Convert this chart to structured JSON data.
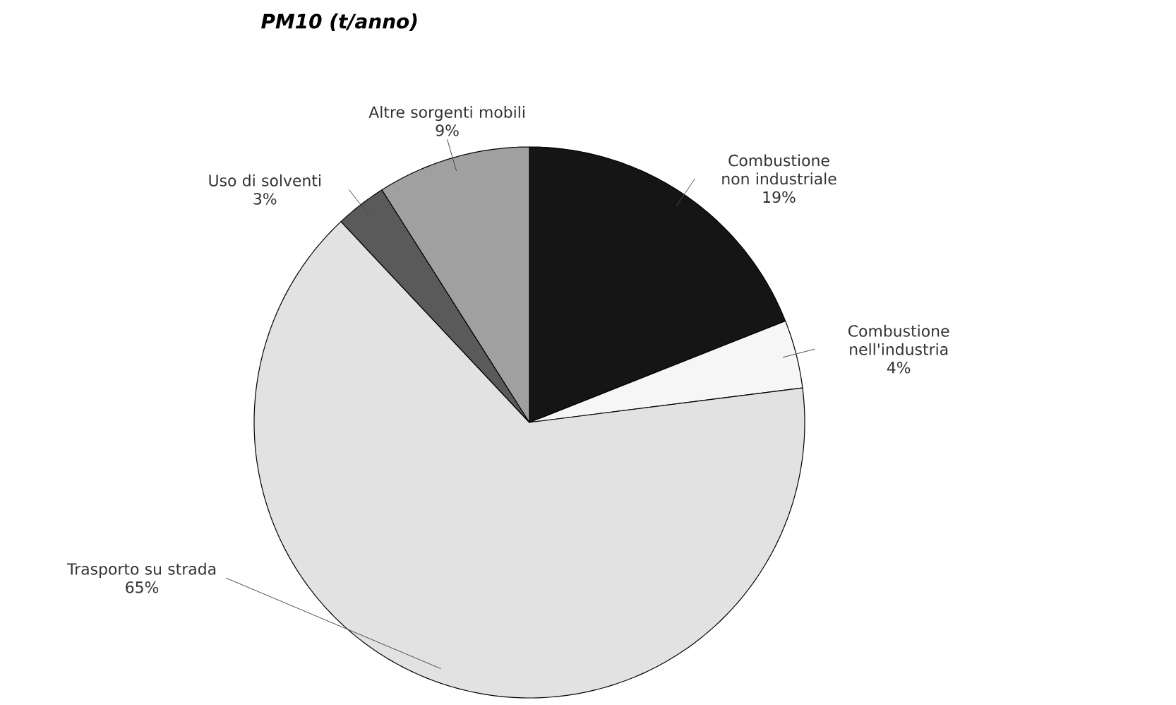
{
  "chart_data": {
    "type": "pie",
    "title": "PM10 (t/anno)",
    "categories": [
      "Combustione non industriale",
      "Combustione nell'industria",
      "Trasporto su strada",
      "Uso di solventi",
      "Altre sorgenti mobili"
    ],
    "values": [
      19,
      4,
      65,
      3,
      9
    ],
    "value_labels": [
      "19%",
      "4%",
      "65%",
      "3%",
      "9%"
    ],
    "colors": [
      "#151515",
      "#f6f6f6",
      "#e2e2e2",
      "#5a5a5a",
      "#a0a0a0"
    ]
  }
}
